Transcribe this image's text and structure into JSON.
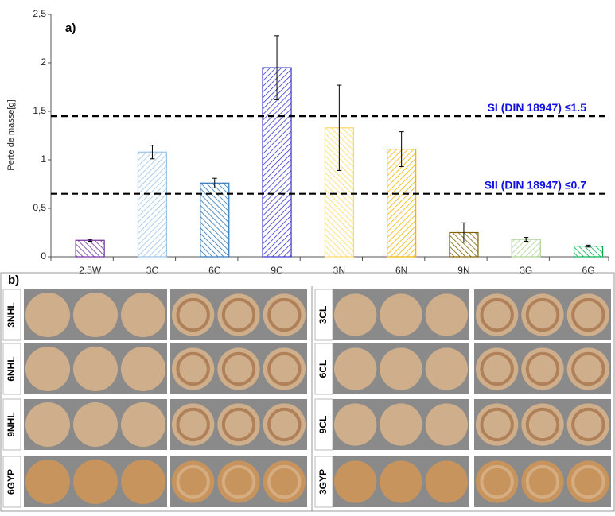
{
  "chart_data": {
    "type": "bar",
    "panel_label": "a)",
    "ylabel": "Perte de masse[g]",
    "categories": [
      "2.5W",
      "3C",
      "6C",
      "9C",
      "3N",
      "6N",
      "9N",
      "3G",
      "6G"
    ],
    "values": [
      0.17,
      1.08,
      0.76,
      1.95,
      1.33,
      1.11,
      0.25,
      0.18,
      0.11
    ],
    "errors": [
      0.01,
      0.07,
      0.05,
      0.33,
      0.44,
      0.18,
      0.1,
      0.02,
      0.01
    ],
    "colors": [
      "#7030a0",
      "#9dc3e6",
      "#2e75b6",
      "#3535c8",
      "#ffd966",
      "#f0b400",
      "#7f6000",
      "#a9d18e",
      "#00b050"
    ],
    "ylim": [
      0,
      2.5
    ],
    "yticks": [
      0,
      {
        "value": 0.5,
        "label": "0,5"
      },
      1,
      {
        "value": 1.5,
        "label": "1,5"
      },
      2,
      {
        "value": 2.5,
        "label": "2,5"
      }
    ],
    "reference_lines": [
      {
        "value": 1.45,
        "label": "SI (DIN 18947) ≤1.5"
      },
      {
        "value": 0.65,
        "label": "SII (DIN 18947) ≤0.7"
      }
    ]
  },
  "photo_panel": {
    "panel_label": "b)",
    "left_labels": [
      "3NHL",
      "6NHL",
      "9NHL",
      "6GYP"
    ],
    "right_labels": [
      "3CL",
      "6CL",
      "9CL",
      "3GYP"
    ]
  }
}
